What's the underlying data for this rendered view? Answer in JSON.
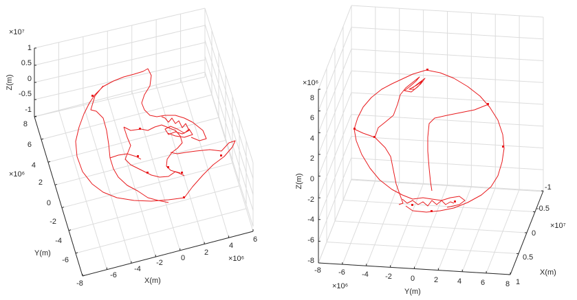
{
  "chart_data": [
    {
      "type": "line",
      "view": "3d-oblique-top",
      "series_color": "#e8191c",
      "grid": true,
      "xlabel": "X(m)",
      "ylabel": "Y(m)",
      "zlabel": "Z(m)",
      "x_exponent": "×10⁶",
      "y_exponent": "×10⁶",
      "z_exponent": "×10⁷",
      "xticks": [
        "-8",
        "-6",
        "-4",
        "-2",
        "0",
        "2",
        "4",
        "6"
      ],
      "yticks": [
        "8",
        "6",
        "4",
        "2",
        "0",
        "-2",
        "-4",
        "-6"
      ],
      "zticks": [
        "1",
        "0.5",
        "0",
        "-0.5",
        "-1"
      ],
      "xlim": [
        -8000000,
        6000000
      ],
      "ylim": [
        -7000000,
        8000000
      ],
      "zlim": [
        -10000000,
        10000000
      ]
    },
    {
      "type": "line",
      "view": "3d-side",
      "series_color": "#e8191c",
      "grid": true,
      "xlabel": "X(m)",
      "ylabel": "Y(m)",
      "zlabel": "Z(m)",
      "x_exponent": "×10⁷",
      "y_exponent": "×10⁶",
      "z_exponent": "×10⁶",
      "xticks": [
        "-1",
        "-0.5",
        "0",
        "0.5",
        "1"
      ],
      "yticks": [
        "-8",
        "-6",
        "-4",
        "-2",
        "0",
        "2",
        "4",
        "6",
        "8"
      ],
      "zticks": [
        "8",
        "6",
        "4",
        "2",
        "0",
        "-2",
        "-4",
        "-6",
        "-8"
      ],
      "xlim": [
        -10000000,
        10000000
      ],
      "ylim": [
        -8000000,
        8000000
      ],
      "zlim": [
        -8000000,
        8000000
      ]
    }
  ]
}
